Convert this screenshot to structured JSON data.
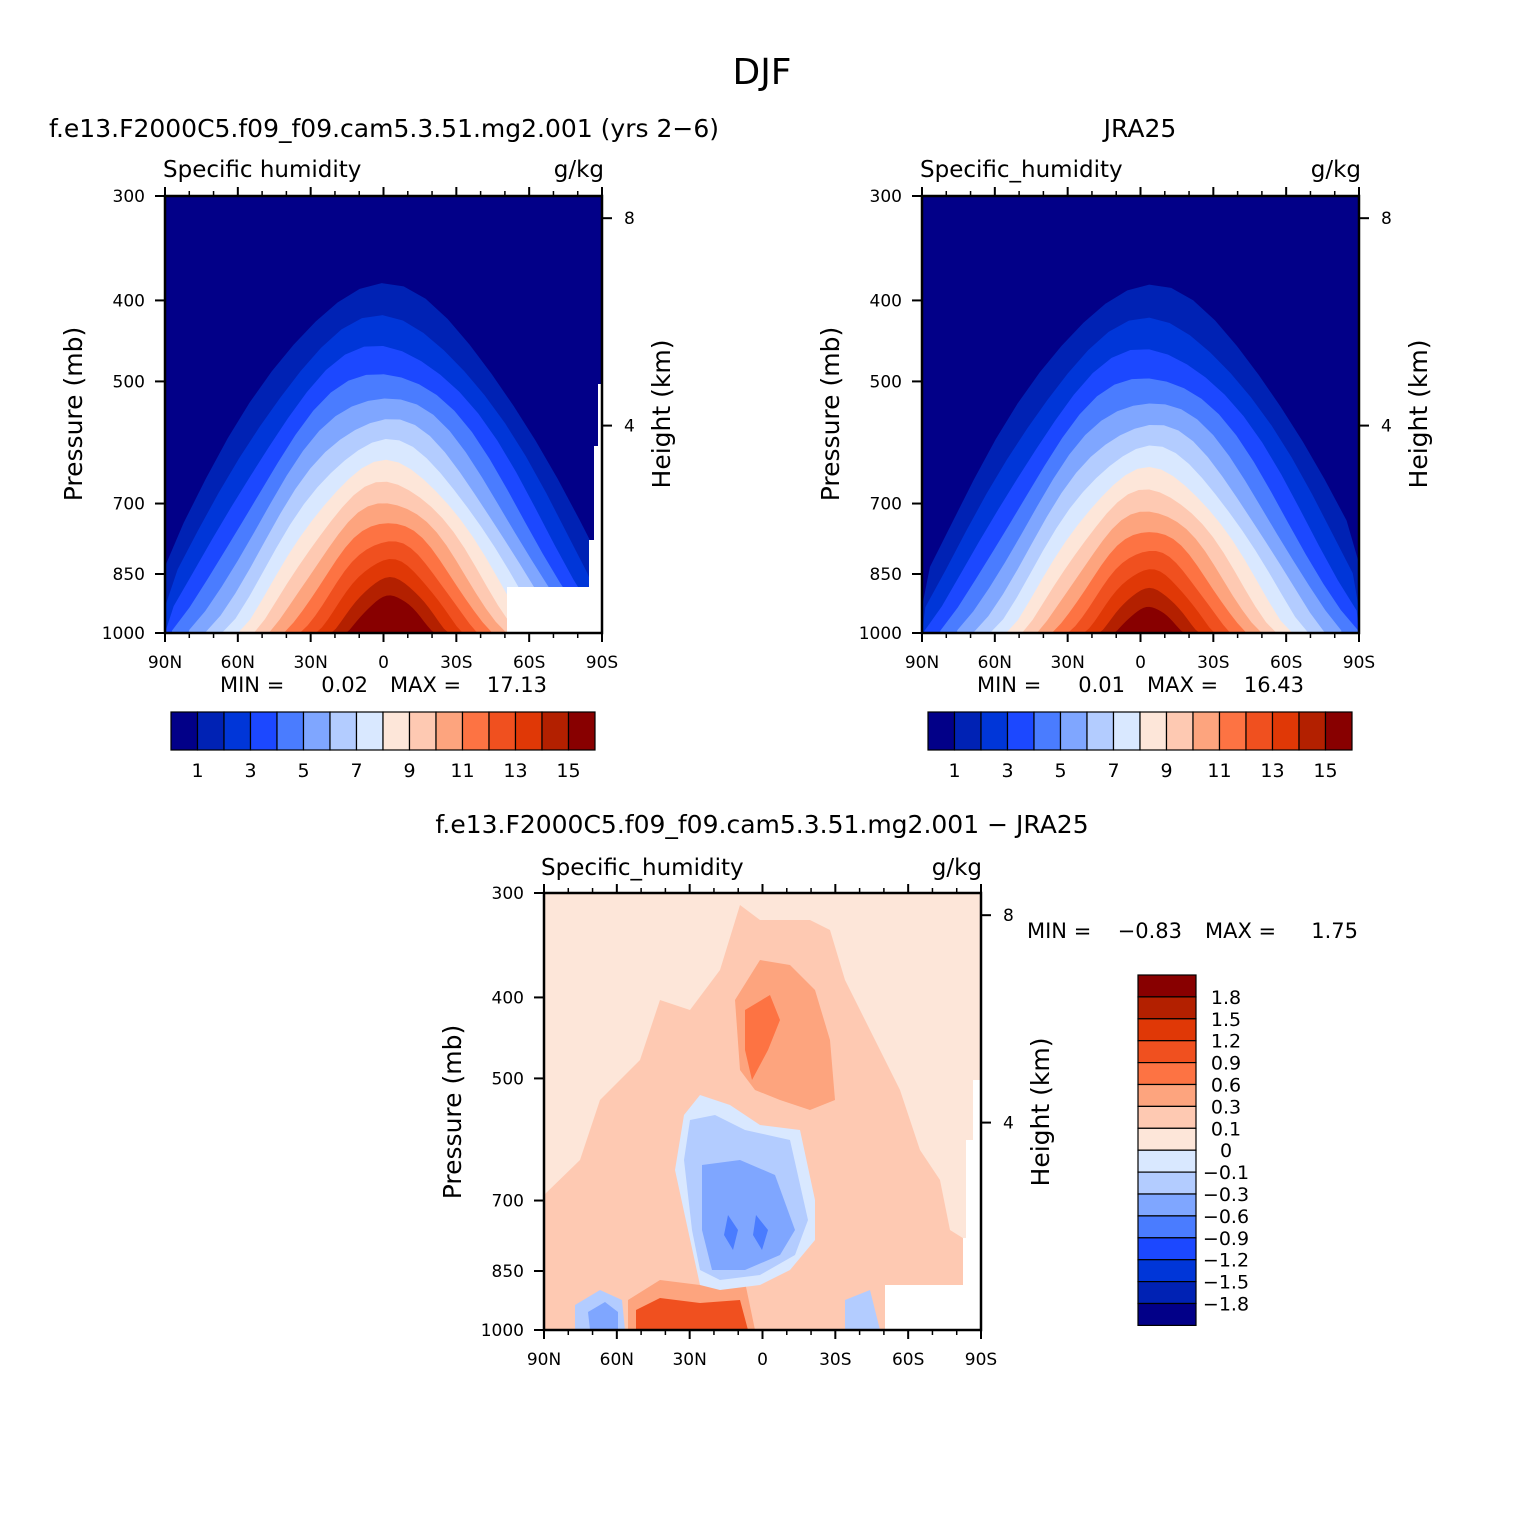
{
  "figure": {
    "title": "DJF"
  },
  "colors": {
    "model_levels": [
      "#020088",
      "#0022b4",
      "#0036d8",
      "#1c48ff",
      "#4a7cff",
      "#7fa6ff",
      "#b3ccff",
      "#d9e8ff",
      "#fde6d9",
      "#fec9b2",
      "#fda47e",
      "#fd7343",
      "#f0501f",
      "#e03806",
      "#b32000",
      "#880000"
    ],
    "diff_levels": [
      "#020088",
      "#0022b4",
      "#0036d8",
      "#1c48ff",
      "#4a7cff",
      "#7fa6ff",
      "#b3ccff",
      "#d9e8ff",
      "#fde6d9",
      "#fec9b2",
      "#fda47e",
      "#fd7343",
      "#f0501f",
      "#e03806",
      "#b32000",
      "#880000"
    ]
  },
  "chart_data": [
    {
      "type": "contour",
      "id": "model",
      "title": "f.e13.F2000C5.f09_f09.cam5.3.51.mg2.001 (yrs 2−6)",
      "left_label": "Specific  humidity",
      "units": "g/kg",
      "ylabel": "Pressure (mb)",
      "ylabel_right": "Height (km)",
      "x_ticks": [
        "90N",
        "60N",
        "30N",
        "0",
        "30S",
        "60S",
        "90S"
      ],
      "y_ticks": [
        "300",
        "400",
        "500",
        "700",
        "850",
        "1000"
      ],
      "y_right_ticks": [
        "8",
        "4"
      ],
      "min_label": "MIN =",
      "min_value": "0.02",
      "max_label": "MAX =",
      "max_value": "17.13",
      "colorbar_labels": [
        "1",
        "3",
        "5",
        "7",
        "9",
        "11",
        "13",
        "15"
      ],
      "peak": 17.13
    },
    {
      "type": "contour",
      "id": "obs",
      "title": "JRA25",
      "left_label": "Specific_humidity",
      "units": "g/kg",
      "ylabel": "Pressure (mb)",
      "ylabel_right": "Height (km)",
      "x_ticks": [
        "90N",
        "60N",
        "30N",
        "0",
        "30S",
        "60S",
        "90S"
      ],
      "y_ticks": [
        "300",
        "400",
        "500",
        "700",
        "850",
        "1000"
      ],
      "y_right_ticks": [
        "8",
        "4"
      ],
      "min_label": "MIN =",
      "min_value": "0.01",
      "max_label": "MAX =",
      "max_value": "16.43",
      "colorbar_labels": [
        "1",
        "3",
        "5",
        "7",
        "9",
        "11",
        "13",
        "15"
      ],
      "peak": 16.43
    },
    {
      "type": "contour",
      "id": "diff",
      "title": "f.e13.F2000C5.f09_f09.cam5.3.51.mg2.001 − JRA25",
      "left_label": "Specific_humidity",
      "units": "g/kg",
      "ylabel": "Pressure (mb)",
      "ylabel_right": "Height (km)",
      "x_ticks": [
        "90N",
        "60N",
        "30N",
        "0",
        "30S",
        "60S",
        "90S"
      ],
      "y_ticks": [
        "300",
        "400",
        "500",
        "700",
        "850",
        "1000"
      ],
      "y_right_ticks": [
        "8",
        "4"
      ],
      "min_label": "MIN =",
      "min_value": "−0.83",
      "max_label": "MAX =",
      "max_value": "1.75",
      "colorbar_labels": [
        "1.8",
        "1.5",
        "1.2",
        "0.9",
        "0.6",
        "0.3",
        "0.1",
        "0",
        "−0.1",
        "−0.3",
        "−0.6",
        "−0.9",
        "−1.2",
        "−1.5",
        "−1.8"
      ]
    }
  ]
}
